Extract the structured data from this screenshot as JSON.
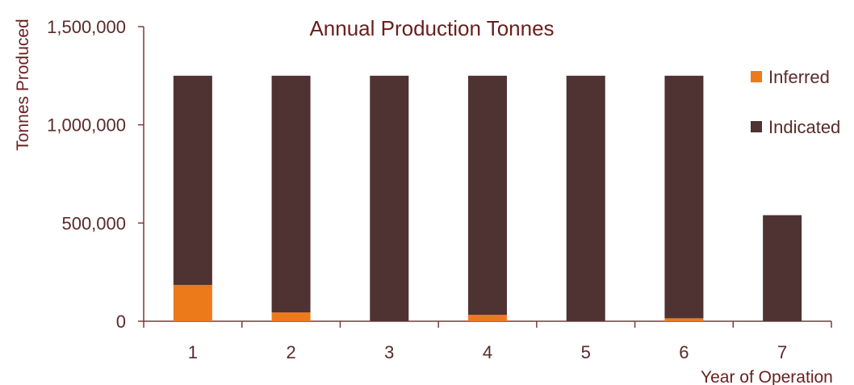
{
  "chart_data": {
    "type": "bar",
    "stacked": true,
    "title": "Annual Production Tonnes",
    "xlabel": "Year of Operation",
    "ylabel": "Tonnes Produced",
    "ylim": [
      0,
      1500000
    ],
    "yticks": [
      0,
      500000,
      1000000,
      1500000
    ],
    "ytick_labels": [
      "0",
      "500,000",
      "1,000,000",
      "1,500,000"
    ],
    "categories": [
      "1",
      "2",
      "3",
      "4",
      "5",
      "6",
      "7"
    ],
    "series": [
      {
        "name": "Inferred",
        "color": "#ed7a1a",
        "values": [
          185000,
          45000,
          0,
          33000,
          0,
          15000,
          0
        ]
      },
      {
        "name": "Indicated",
        "color": "#4f3232",
        "values": [
          1065000,
          1205000,
          1250000,
          1217000,
          1250000,
          1235000,
          540000
        ]
      }
    ],
    "legend_position": "right",
    "grid": false
  }
}
